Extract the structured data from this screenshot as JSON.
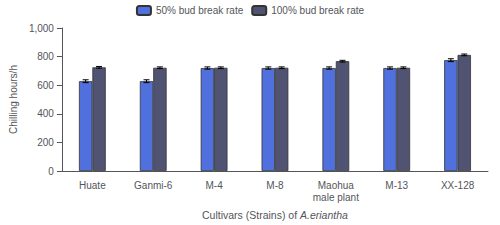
{
  "chart_data": {
    "type": "bar",
    "categories": [
      "Huate",
      "Ganmi-6",
      "M-4",
      "M-8",
      "Maohua\nmale plant",
      "M-13",
      "XX-128"
    ],
    "series": [
      {
        "name": "50% bud break rate",
        "values": [
          628,
          628,
          720,
          720,
          720,
          720,
          775
        ],
        "errors": [
          10,
          10,
          8,
          8,
          8,
          8,
          10
        ]
      },
      {
        "name": "100% bud break rate",
        "values": [
          725,
          722,
          722,
          722,
          768,
          722,
          812
        ],
        "errors": [
          6,
          6,
          6,
          6,
          6,
          6,
          6
        ]
      }
    ],
    "xlabel": "Cultivars (Strains) of A.eriantha",
    "ylabel": "Chilling hours/h",
    "ylim": [
      0,
      1000
    ],
    "yticks": [
      0,
      200,
      400,
      600,
      800,
      1000
    ],
    "grid": false,
    "legend": "top"
  }
}
